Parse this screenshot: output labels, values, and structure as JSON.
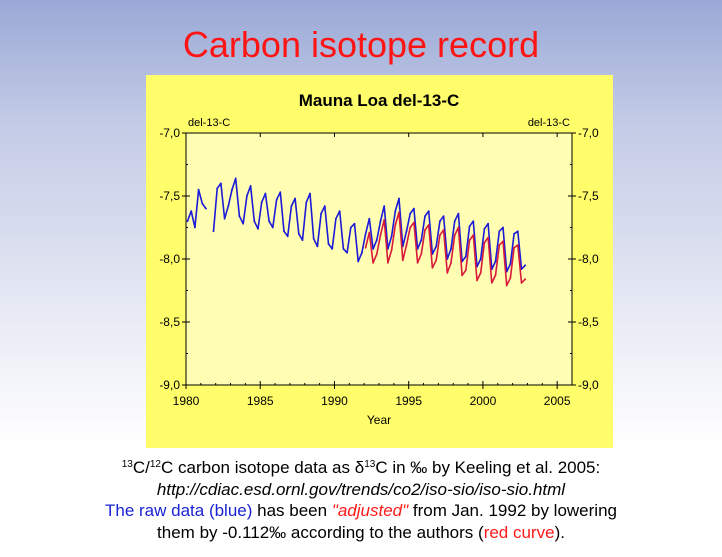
{
  "slide": {
    "title": "Carbon isotope record"
  },
  "colors": {
    "title": "#ff1414",
    "panel_bg": "#fffe6a",
    "plot_bg": "#fffeb3",
    "raw_series": "#1a1ad8",
    "adjusted_series": "#d81a3a"
  },
  "chart_data": {
    "type": "line",
    "title": "Mauna Loa del-13-C",
    "xlabel": "Year",
    "ylabel_left": "del-13-C",
    "ylabel_right": "del-13-C",
    "xlim": [
      1980,
      2006
    ],
    "ylim": [
      -9.0,
      -7.0
    ],
    "x_ticks": [
      1980,
      1985,
      1990,
      1995,
      2000,
      2005
    ],
    "y_ticks": [
      -7.0,
      -7.5,
      -8.0,
      -8.5,
      -9.0
    ],
    "y_tick_labels": [
      "-7,0",
      "-7,5",
      "-8,0",
      "-8,5",
      "-9,0"
    ],
    "grid": false,
    "series": [
      {
        "key": "raw",
        "color": "#1a1ad8",
        "x": [
          1980.1,
          1980.35,
          1980.6,
          1980.85,
          1981.1,
          1981.35,
          1981.6,
          1981.85,
          1982.1,
          1982.35,
          1982.6,
          1982.85,
          1983.1,
          1983.35,
          1983.6,
          1983.85,
          1984.1,
          1984.35,
          1984.6,
          1984.85,
          1985.1,
          1985.35,
          1985.6,
          1985.85,
          1986.1,
          1986.35,
          1986.6,
          1986.85,
          1987.1,
          1987.35,
          1987.6,
          1987.85,
          1988.1,
          1988.35,
          1988.6,
          1988.85,
          1989.1,
          1989.35,
          1989.6,
          1989.85,
          1990.1,
          1990.35,
          1990.6,
          1990.85,
          1991.1,
          1991.35,
          1991.6,
          1991.85,
          1992.1,
          1992.35,
          1992.6,
          1992.85,
          1993.1,
          1993.35,
          1993.6,
          1993.85,
          1994.1,
          1994.35,
          1994.6,
          1994.85,
          1995.1,
          1995.35,
          1995.6,
          1995.85,
          1996.1,
          1996.35,
          1996.6,
          1996.85,
          1997.1,
          1997.35,
          1997.6,
          1997.85,
          1998.1,
          1998.35,
          1998.6,
          1998.85,
          1999.1,
          1999.35,
          1999.6,
          1999.85,
          2000.1,
          2000.35,
          2000.6,
          2000.85,
          2001.1,
          2001.35,
          2001.6,
          2001.85,
          2002.1,
          2002.35,
          2002.6,
          2002.85
        ],
        "y": [
          -7.7,
          -7.62,
          -7.75,
          -7.45,
          -7.56,
          -7.6,
          null,
          -7.78,
          -7.44,
          -7.4,
          -7.68,
          -7.58,
          -7.45,
          -7.36,
          -7.66,
          -7.72,
          -7.5,
          -7.42,
          -7.7,
          -7.76,
          -7.55,
          -7.48,
          -7.7,
          -7.75,
          -7.53,
          -7.47,
          -7.78,
          -7.82,
          -7.58,
          -7.52,
          -7.8,
          -7.85,
          -7.55,
          -7.48,
          -7.84,
          -7.9,
          -7.64,
          -7.58,
          -7.88,
          -7.92,
          -7.68,
          -7.62,
          -7.92,
          -7.95,
          -7.75,
          -7.72,
          -8.02,
          -7.95,
          -7.8,
          -7.68,
          -7.92,
          -7.85,
          -7.7,
          -7.58,
          -7.92,
          -7.82,
          -7.62,
          -7.52,
          -7.9,
          -7.78,
          -7.64,
          -7.6,
          -7.92,
          -7.85,
          -7.66,
          -7.62,
          -7.96,
          -7.9,
          -7.7,
          -7.66,
          -8.0,
          -7.92,
          -7.7,
          -7.64,
          -8.02,
          -7.98,
          -7.74,
          -7.7,
          -8.06,
          -8.0,
          -7.76,
          -7.72,
          -8.08,
          -8.02,
          -7.78,
          -7.75,
          -8.1,
          -8.04,
          -7.8,
          -7.78,
          -8.08,
          -8.05
        ]
      },
      {
        "key": "adjusted",
        "color": "#d81a3a",
        "x": [
          1992.1,
          1992.35,
          1992.6,
          1992.85,
          1993.1,
          1993.35,
          1993.6,
          1993.85,
          1994.1,
          1994.35,
          1994.6,
          1994.85,
          1995.1,
          1995.35,
          1995.6,
          1995.85,
          1996.1,
          1996.35,
          1996.6,
          1996.85,
          1997.1,
          1997.35,
          1997.6,
          1997.85,
          1998.1,
          1998.35,
          1998.6,
          1998.85,
          1999.1,
          1999.35,
          1999.6,
          1999.85,
          2000.1,
          2000.35,
          2000.6,
          2000.85,
          2001.1,
          2001.35,
          2001.6,
          2001.85,
          2002.1,
          2002.35,
          2002.6,
          2002.85
        ],
        "y": [
          -7.91,
          -7.79,
          -8.03,
          -7.96,
          -7.81,
          -7.69,
          -8.03,
          -7.93,
          -7.73,
          -7.63,
          -8.01,
          -7.89,
          -7.75,
          -7.71,
          -8.03,
          -7.96,
          -7.77,
          -7.73,
          -8.07,
          -8.01,
          -7.81,
          -7.77,
          -8.11,
          -8.03,
          -7.81,
          -7.75,
          -8.13,
          -8.09,
          -7.85,
          -7.81,
          -8.17,
          -8.11,
          -7.87,
          -7.83,
          -8.19,
          -8.13,
          -7.89,
          -7.86,
          -8.21,
          -8.15,
          -7.91,
          -7.89,
          -8.19,
          -8.16
        ]
      }
    ]
  },
  "caption": {
    "line1_sup_a": "13",
    "line1_a": "C/",
    "line1_sup_b": "12",
    "line1_b": "C carbon isotope data as δ",
    "line1_sup_c": "13",
    "line1_c": "C in ‰ by Keeling et al. 2005:",
    "url": "http://cdiac.esd.ornl.gov/trends/co2/iso-sio/iso-sio.html",
    "line3_blue": "The raw data (blue)",
    "line3_mid": " has been ",
    "line3_adjusted": "\"adjusted\"",
    "line3_end": " from Jan. 1992 by lowering",
    "line4_a": "them by -0.112‰ according to the authors (",
    "line4_red": "red curve",
    "line4_b": ")."
  }
}
